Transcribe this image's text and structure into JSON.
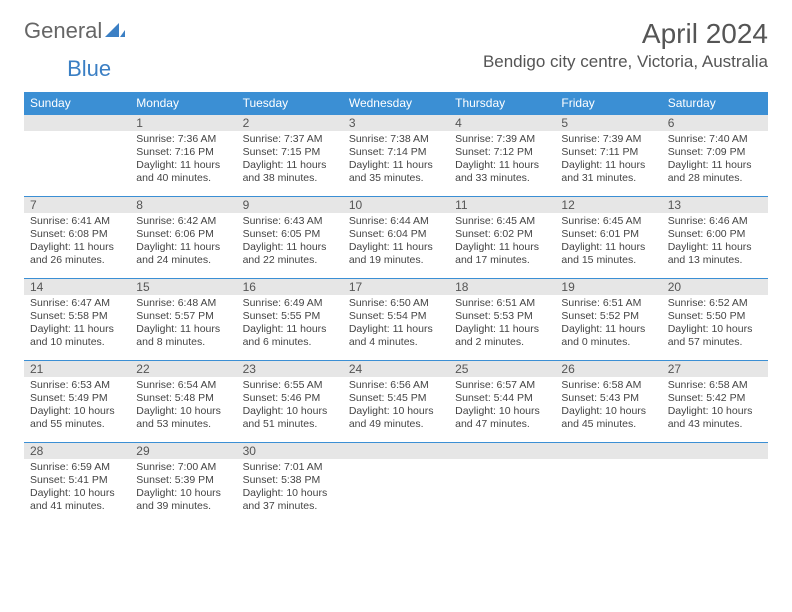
{
  "logo": {
    "part1": "General",
    "part2": "Blue"
  },
  "title": "April 2024",
  "location": "Bendigo city centre, Victoria, Australia",
  "colors": {
    "header_bg": "#3b8fd4",
    "header_text": "#ffffff",
    "daynum_bg": "#e6e6e6",
    "border": "#3b8fd4",
    "text": "#444444",
    "logo_blue": "#3b7fc4"
  },
  "weekdays": [
    "Sunday",
    "Monday",
    "Tuesday",
    "Wednesday",
    "Thursday",
    "Friday",
    "Saturday"
  ],
  "weeks": [
    [
      {
        "day": "",
        "sunrise": "",
        "sunset": "",
        "daylight": ""
      },
      {
        "day": "1",
        "sunrise": "Sunrise: 7:36 AM",
        "sunset": "Sunset: 7:16 PM",
        "daylight": "Daylight: 11 hours and 40 minutes."
      },
      {
        "day": "2",
        "sunrise": "Sunrise: 7:37 AM",
        "sunset": "Sunset: 7:15 PM",
        "daylight": "Daylight: 11 hours and 38 minutes."
      },
      {
        "day": "3",
        "sunrise": "Sunrise: 7:38 AM",
        "sunset": "Sunset: 7:14 PM",
        "daylight": "Daylight: 11 hours and 35 minutes."
      },
      {
        "day": "4",
        "sunrise": "Sunrise: 7:39 AM",
        "sunset": "Sunset: 7:12 PM",
        "daylight": "Daylight: 11 hours and 33 minutes."
      },
      {
        "day": "5",
        "sunrise": "Sunrise: 7:39 AM",
        "sunset": "Sunset: 7:11 PM",
        "daylight": "Daylight: 11 hours and 31 minutes."
      },
      {
        "day": "6",
        "sunrise": "Sunrise: 7:40 AM",
        "sunset": "Sunset: 7:09 PM",
        "daylight": "Daylight: 11 hours and 28 minutes."
      }
    ],
    [
      {
        "day": "7",
        "sunrise": "Sunrise: 6:41 AM",
        "sunset": "Sunset: 6:08 PM",
        "daylight": "Daylight: 11 hours and 26 minutes."
      },
      {
        "day": "8",
        "sunrise": "Sunrise: 6:42 AM",
        "sunset": "Sunset: 6:06 PM",
        "daylight": "Daylight: 11 hours and 24 minutes."
      },
      {
        "day": "9",
        "sunrise": "Sunrise: 6:43 AM",
        "sunset": "Sunset: 6:05 PM",
        "daylight": "Daylight: 11 hours and 22 minutes."
      },
      {
        "day": "10",
        "sunrise": "Sunrise: 6:44 AM",
        "sunset": "Sunset: 6:04 PM",
        "daylight": "Daylight: 11 hours and 19 minutes."
      },
      {
        "day": "11",
        "sunrise": "Sunrise: 6:45 AM",
        "sunset": "Sunset: 6:02 PM",
        "daylight": "Daylight: 11 hours and 17 minutes."
      },
      {
        "day": "12",
        "sunrise": "Sunrise: 6:45 AM",
        "sunset": "Sunset: 6:01 PM",
        "daylight": "Daylight: 11 hours and 15 minutes."
      },
      {
        "day": "13",
        "sunrise": "Sunrise: 6:46 AM",
        "sunset": "Sunset: 6:00 PM",
        "daylight": "Daylight: 11 hours and 13 minutes."
      }
    ],
    [
      {
        "day": "14",
        "sunrise": "Sunrise: 6:47 AM",
        "sunset": "Sunset: 5:58 PM",
        "daylight": "Daylight: 11 hours and 10 minutes."
      },
      {
        "day": "15",
        "sunrise": "Sunrise: 6:48 AM",
        "sunset": "Sunset: 5:57 PM",
        "daylight": "Daylight: 11 hours and 8 minutes."
      },
      {
        "day": "16",
        "sunrise": "Sunrise: 6:49 AM",
        "sunset": "Sunset: 5:55 PM",
        "daylight": "Daylight: 11 hours and 6 minutes."
      },
      {
        "day": "17",
        "sunrise": "Sunrise: 6:50 AM",
        "sunset": "Sunset: 5:54 PM",
        "daylight": "Daylight: 11 hours and 4 minutes."
      },
      {
        "day": "18",
        "sunrise": "Sunrise: 6:51 AM",
        "sunset": "Sunset: 5:53 PM",
        "daylight": "Daylight: 11 hours and 2 minutes."
      },
      {
        "day": "19",
        "sunrise": "Sunrise: 6:51 AM",
        "sunset": "Sunset: 5:52 PM",
        "daylight": "Daylight: 11 hours and 0 minutes."
      },
      {
        "day": "20",
        "sunrise": "Sunrise: 6:52 AM",
        "sunset": "Sunset: 5:50 PM",
        "daylight": "Daylight: 10 hours and 57 minutes."
      }
    ],
    [
      {
        "day": "21",
        "sunrise": "Sunrise: 6:53 AM",
        "sunset": "Sunset: 5:49 PM",
        "daylight": "Daylight: 10 hours and 55 minutes."
      },
      {
        "day": "22",
        "sunrise": "Sunrise: 6:54 AM",
        "sunset": "Sunset: 5:48 PM",
        "daylight": "Daylight: 10 hours and 53 minutes."
      },
      {
        "day": "23",
        "sunrise": "Sunrise: 6:55 AM",
        "sunset": "Sunset: 5:46 PM",
        "daylight": "Daylight: 10 hours and 51 minutes."
      },
      {
        "day": "24",
        "sunrise": "Sunrise: 6:56 AM",
        "sunset": "Sunset: 5:45 PM",
        "daylight": "Daylight: 10 hours and 49 minutes."
      },
      {
        "day": "25",
        "sunrise": "Sunrise: 6:57 AM",
        "sunset": "Sunset: 5:44 PM",
        "daylight": "Daylight: 10 hours and 47 minutes."
      },
      {
        "day": "26",
        "sunrise": "Sunrise: 6:58 AM",
        "sunset": "Sunset: 5:43 PM",
        "daylight": "Daylight: 10 hours and 45 minutes."
      },
      {
        "day": "27",
        "sunrise": "Sunrise: 6:58 AM",
        "sunset": "Sunset: 5:42 PM",
        "daylight": "Daylight: 10 hours and 43 minutes."
      }
    ],
    [
      {
        "day": "28",
        "sunrise": "Sunrise: 6:59 AM",
        "sunset": "Sunset: 5:41 PM",
        "daylight": "Daylight: 10 hours and 41 minutes."
      },
      {
        "day": "29",
        "sunrise": "Sunrise: 7:00 AM",
        "sunset": "Sunset: 5:39 PM",
        "daylight": "Daylight: 10 hours and 39 minutes."
      },
      {
        "day": "30",
        "sunrise": "Sunrise: 7:01 AM",
        "sunset": "Sunset: 5:38 PM",
        "daylight": "Daylight: 10 hours and 37 minutes."
      },
      {
        "day": "",
        "sunrise": "",
        "sunset": "",
        "daylight": ""
      },
      {
        "day": "",
        "sunrise": "",
        "sunset": "",
        "daylight": ""
      },
      {
        "day": "",
        "sunrise": "",
        "sunset": "",
        "daylight": ""
      },
      {
        "day": "",
        "sunrise": "",
        "sunset": "",
        "daylight": ""
      }
    ]
  ]
}
